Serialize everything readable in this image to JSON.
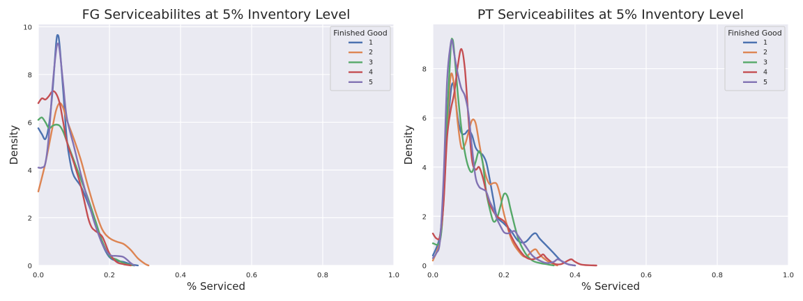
{
  "chart_data": [
    {
      "type": "line",
      "title": "FG Serviceabilites at 5% Inventory Level",
      "xlabel": "% Serviced",
      "ylabel": "Density",
      "xlim": [
        0,
        1
      ],
      "ylim": [
        0,
        10.1
      ],
      "xticks": [
        "0.0",
        "0.2",
        "0.4",
        "0.6",
        "0.8",
        "1.0"
      ],
      "xtick_values": [
        0,
        0.2,
        0.4,
        0.6,
        0.8,
        1.0
      ],
      "yticks": [
        "0",
        "2",
        "4",
        "6",
        "8",
        "10"
      ],
      "ytick_values": [
        0,
        2,
        4,
        6,
        8,
        10
      ],
      "grid": true,
      "legend": {
        "title": "Finished Good",
        "placement": "top-right"
      },
      "series": [
        {
          "name": "1",
          "color": "#4c72b0",
          "points": [
            [
              0,
              5.75
            ],
            [
              0.01,
              5.5
            ],
            [
              0.02,
              5.3
            ],
            [
              0.03,
              5.9
            ],
            [
              0.04,
              7.3
            ],
            [
              0.05,
              9.3
            ],
            [
              0.055,
              9.65
            ],
            [
              0.06,
              9.2
            ],
            [
              0.07,
              7.3
            ],
            [
              0.08,
              5.3
            ],
            [
              0.09,
              4.3
            ],
            [
              0.1,
              3.75
            ],
            [
              0.12,
              3.3
            ],
            [
              0.14,
              2.6
            ],
            [
              0.16,
              1.8
            ],
            [
              0.18,
              0.9
            ],
            [
              0.2,
              0.35
            ],
            [
              0.22,
              0.2
            ],
            [
              0.24,
              0.15
            ],
            [
              0.26,
              0.05
            ],
            [
              0.28,
              0
            ]
          ]
        },
        {
          "name": "2",
          "color": "#dd8452",
          "points": [
            [
              0,
              3.1
            ],
            [
              0.02,
              4.3
            ],
            [
              0.04,
              5.8
            ],
            [
              0.05,
              6.5
            ],
            [
              0.06,
              6.8
            ],
            [
              0.07,
              6.6
            ],
            [
              0.08,
              6.1
            ],
            [
              0.1,
              5.3
            ],
            [
              0.12,
              4.4
            ],
            [
              0.14,
              3.3
            ],
            [
              0.16,
              2.3
            ],
            [
              0.18,
              1.5
            ],
            [
              0.2,
              1.15
            ],
            [
              0.22,
              1.0
            ],
            [
              0.24,
              0.9
            ],
            [
              0.26,
              0.65
            ],
            [
              0.28,
              0.3
            ],
            [
              0.3,
              0.07
            ],
            [
              0.31,
              0
            ]
          ]
        },
        {
          "name": "3",
          "color": "#55a868",
          "points": [
            [
              0,
              6.1
            ],
            [
              0.01,
              6.2
            ],
            [
              0.02,
              6.0
            ],
            [
              0.03,
              5.75
            ],
            [
              0.04,
              5.85
            ],
            [
              0.05,
              5.9
            ],
            [
              0.06,
              5.85
            ],
            [
              0.07,
              5.6
            ],
            [
              0.08,
              5.2
            ],
            [
              0.1,
              4.4
            ],
            [
              0.12,
              3.6
            ],
            [
              0.14,
              2.8
            ],
            [
              0.16,
              1.9
            ],
            [
              0.18,
              1.0
            ],
            [
              0.2,
              0.4
            ],
            [
              0.22,
              0.25
            ],
            [
              0.24,
              0.1
            ],
            [
              0.26,
              0.02
            ],
            [
              0.27,
              0
            ]
          ]
        },
        {
          "name": "4",
          "color": "#c44e52",
          "points": [
            [
              0,
              6.8
            ],
            [
              0.01,
              7.0
            ],
            [
              0.02,
              6.95
            ],
            [
              0.03,
              7.1
            ],
            [
              0.04,
              7.3
            ],
            [
              0.05,
              7.2
            ],
            [
              0.06,
              6.8
            ],
            [
              0.07,
              6.0
            ],
            [
              0.08,
              5.2
            ],
            [
              0.1,
              4.3
            ],
            [
              0.12,
              3.3
            ],
            [
              0.14,
              2.0
            ],
            [
              0.15,
              1.6
            ],
            [
              0.16,
              1.45
            ],
            [
              0.18,
              1.2
            ],
            [
              0.2,
              0.5
            ],
            [
              0.22,
              0.15
            ],
            [
              0.24,
              0.05
            ],
            [
              0.26,
              0
            ]
          ]
        },
        {
          "name": "5",
          "color": "#8172b3",
          "points": [
            [
              0,
              4.1
            ],
            [
              0.01,
              4.1
            ],
            [
              0.02,
              4.3
            ],
            [
              0.03,
              5.5
            ],
            [
              0.04,
              7.5
            ],
            [
              0.05,
              9.0
            ],
            [
              0.055,
              9.3
            ],
            [
              0.06,
              9.0
            ],
            [
              0.07,
              7.6
            ],
            [
              0.08,
              6.2
            ],
            [
              0.1,
              5.0
            ],
            [
              0.12,
              3.8
            ],
            [
              0.14,
              2.7
            ],
            [
              0.16,
              1.7
            ],
            [
              0.18,
              0.9
            ],
            [
              0.2,
              0.45
            ],
            [
              0.22,
              0.4
            ],
            [
              0.24,
              0.35
            ],
            [
              0.26,
              0.1
            ],
            [
              0.27,
              0
            ]
          ]
        }
      ]
    },
    {
      "type": "line",
      "title": "PT Serviceabilites at 5% Inventory Level",
      "xlabel": "% Serviced",
      "ylabel": "Density",
      "xlim": [
        0,
        1
      ],
      "ylim": [
        0,
        9.8
      ],
      "xticks": [
        "0.0",
        "0.2",
        "0.4",
        "0.6",
        "0.8",
        "1.0"
      ],
      "xtick_values": [
        0,
        0.2,
        0.4,
        0.6,
        0.8,
        1.0
      ],
      "yticks": [
        "0",
        "2",
        "4",
        "6",
        "8"
      ],
      "ytick_values": [
        0,
        2,
        4,
        6,
        8
      ],
      "grid": true,
      "legend": {
        "title": "Finished Good",
        "placement": "top-right"
      },
      "series": [
        {
          "name": "1",
          "color": "#4c72b0",
          "points": [
            [
              0,
              0.4
            ],
            [
              0.02,
              1.2
            ],
            [
              0.03,
              3.0
            ],
            [
              0.04,
              5.4
            ],
            [
              0.05,
              7.0
            ],
            [
              0.055,
              7.4
            ],
            [
              0.06,
              7.2
            ],
            [
              0.07,
              6.0
            ],
            [
              0.08,
              5.4
            ],
            [
              0.09,
              5.35
            ],
            [
              0.1,
              5.5
            ],
            [
              0.11,
              5.3
            ],
            [
              0.12,
              4.8
            ],
            [
              0.13,
              4.6
            ],
            [
              0.14,
              4.5
            ],
            [
              0.15,
              4.2
            ],
            [
              0.16,
              3.5
            ],
            [
              0.17,
              2.7
            ],
            [
              0.18,
              2.0
            ],
            [
              0.2,
              1.7
            ],
            [
              0.22,
              1.4
            ],
            [
              0.24,
              1.0
            ],
            [
              0.26,
              0.95
            ],
            [
              0.28,
              1.25
            ],
            [
              0.29,
              1.3
            ],
            [
              0.3,
              1.1
            ],
            [
              0.32,
              0.8
            ],
            [
              0.34,
              0.5
            ],
            [
              0.36,
              0.2
            ],
            [
              0.38,
              0.05
            ],
            [
              0.4,
              0
            ]
          ]
        },
        {
          "name": "2",
          "color": "#dd8452",
          "points": [
            [
              0,
              0.2
            ],
            [
              0.02,
              1.0
            ],
            [
              0.03,
              2.6
            ],
            [
              0.04,
              5.5
            ],
            [
              0.05,
              7.7
            ],
            [
              0.06,
              7.3
            ],
            [
              0.07,
              5.8
            ],
            [
              0.08,
              4.8
            ],
            [
              0.09,
              4.9
            ],
            [
              0.1,
              5.4
            ],
            [
              0.11,
              5.9
            ],
            [
              0.12,
              5.8
            ],
            [
              0.13,
              5.0
            ],
            [
              0.14,
              4.2
            ],
            [
              0.15,
              3.6
            ],
            [
              0.16,
              3.3
            ],
            [
              0.17,
              3.35
            ],
            [
              0.18,
              3.3
            ],
            [
              0.19,
              2.8
            ],
            [
              0.2,
              2.1
            ],
            [
              0.22,
              1.1
            ],
            [
              0.24,
              0.6
            ],
            [
              0.26,
              0.35
            ],
            [
              0.28,
              0.6
            ],
            [
              0.29,
              0.65
            ],
            [
              0.3,
              0.45
            ],
            [
              0.32,
              0.2
            ],
            [
              0.34,
              0.05
            ],
            [
              0.35,
              0
            ]
          ]
        },
        {
          "name": "3",
          "color": "#55a868",
          "points": [
            [
              0,
              0.9
            ],
            [
              0.02,
              1.0
            ],
            [
              0.03,
              2.7
            ],
            [
              0.04,
              6.0
            ],
            [
              0.05,
              8.8
            ],
            [
              0.055,
              9.2
            ],
            [
              0.06,
              8.7
            ],
            [
              0.07,
              7.0
            ],
            [
              0.08,
              5.6
            ],
            [
              0.09,
              4.6
            ],
            [
              0.1,
              4.0
            ],
            [
              0.11,
              3.8
            ],
            [
              0.12,
              4.2
            ],
            [
              0.13,
              4.65
            ],
            [
              0.14,
              4.2
            ],
            [
              0.15,
              3.0
            ],
            [
              0.16,
              2.3
            ],
            [
              0.17,
              1.8
            ],
            [
              0.18,
              1.9
            ],
            [
              0.19,
              2.4
            ],
            [
              0.2,
              2.9
            ],
            [
              0.21,
              2.8
            ],
            [
              0.22,
              2.2
            ],
            [
              0.24,
              1.1
            ],
            [
              0.26,
              0.5
            ],
            [
              0.28,
              0.2
            ],
            [
              0.3,
              0.1
            ],
            [
              0.32,
              0.05
            ],
            [
              0.34,
              0
            ]
          ]
        },
        {
          "name": "4",
          "color": "#c44e52",
          "points": [
            [
              0,
              1.3
            ],
            [
              0.01,
              1.1
            ],
            [
              0.02,
              1.2
            ],
            [
              0.03,
              2.5
            ],
            [
              0.04,
              5.2
            ],
            [
              0.05,
              6.3
            ],
            [
              0.06,
              7.0
            ],
            [
              0.07,
              8.1
            ],
            [
              0.08,
              8.8
            ],
            [
              0.09,
              8.0
            ],
            [
              0.1,
              6.0
            ],
            [
              0.11,
              4.3
            ],
            [
              0.12,
              3.9
            ],
            [
              0.13,
              4.0
            ],
            [
              0.14,
              3.6
            ],
            [
              0.15,
              3.0
            ],
            [
              0.16,
              2.5
            ],
            [
              0.17,
              2.2
            ],
            [
              0.18,
              2.0
            ],
            [
              0.19,
              1.9
            ],
            [
              0.2,
              1.8
            ],
            [
              0.21,
              1.6
            ],
            [
              0.22,
              1.2
            ],
            [
              0.24,
              0.7
            ],
            [
              0.26,
              0.35
            ],
            [
              0.28,
              0.25
            ],
            [
              0.3,
              0.35
            ],
            [
              0.31,
              0.45
            ],
            [
              0.32,
              0.3
            ],
            [
              0.34,
              0.08
            ],
            [
              0.36,
              0.05
            ],
            [
              0.38,
              0.2
            ],
            [
              0.39,
              0.25
            ],
            [
              0.4,
              0.15
            ],
            [
              0.42,
              0.03
            ],
            [
              0.46,
              0
            ]
          ]
        },
        {
          "name": "5",
          "color": "#8172b3",
          "points": [
            [
              0,
              0.3
            ],
            [
              0.01,
              0.5
            ],
            [
              0.02,
              1.0
            ],
            [
              0.03,
              3.5
            ],
            [
              0.04,
              7.5
            ],
            [
              0.05,
              9.0
            ],
            [
              0.055,
              9.1
            ],
            [
              0.06,
              8.6
            ],
            [
              0.07,
              7.8
            ],
            [
              0.08,
              7.2
            ],
            [
              0.09,
              6.9
            ],
            [
              0.1,
              6.2
            ],
            [
              0.11,
              4.8
            ],
            [
              0.12,
              3.6
            ],
            [
              0.13,
              3.2
            ],
            [
              0.14,
              3.1
            ],
            [
              0.15,
              3.0
            ],
            [
              0.16,
              2.6
            ],
            [
              0.17,
              2.3
            ],
            [
              0.18,
              1.9
            ],
            [
              0.19,
              1.6
            ],
            [
              0.2,
              1.35
            ],
            [
              0.21,
              1.3
            ],
            [
              0.22,
              1.35
            ],
            [
              0.23,
              1.4
            ],
            [
              0.24,
              1.2
            ],
            [
              0.26,
              0.8
            ],
            [
              0.28,
              0.4
            ],
            [
              0.3,
              0.2
            ],
            [
              0.32,
              0.1
            ],
            [
              0.34,
              0.15
            ],
            [
              0.35,
              0.25
            ],
            [
              0.36,
              0.2
            ],
            [
              0.38,
              0.05
            ],
            [
              0.4,
              0
            ]
          ]
        }
      ]
    }
  ]
}
